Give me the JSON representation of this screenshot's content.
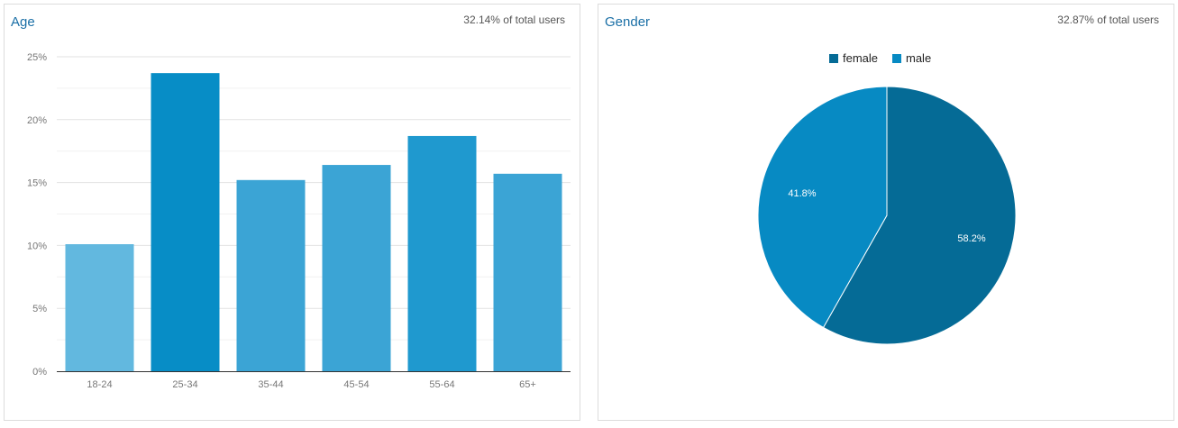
{
  "age_panel": {
    "title": "Age",
    "share": "32.14% of total users"
  },
  "gender_panel": {
    "title": "Gender",
    "share": "32.87% of total users"
  },
  "chart_data": [
    {
      "type": "bar",
      "title": "Age",
      "categories": [
        "18-24",
        "25-34",
        "35-44",
        "45-54",
        "55-64",
        "65+"
      ],
      "values": [
        10.1,
        23.7,
        15.2,
        16.4,
        18.7,
        15.7
      ],
      "colors": [
        "#62b8df",
        "#078dc6",
        "#3ba4d5",
        "#3ba4d5",
        "#1f99cf",
        "#3ba4d5"
      ],
      "ylim": [
        0,
        25
      ],
      "yticks": [
        "0%",
        "5%",
        "10%",
        "15%",
        "20%",
        "25%"
      ],
      "grid": true
    },
    {
      "type": "pie",
      "title": "Gender",
      "labels": [
        "female",
        "male"
      ],
      "values": [
        58.2,
        41.8
      ],
      "value_labels": [
        "58.2%",
        "41.8%"
      ],
      "colors": [
        "#056b96",
        "#078ac3"
      ],
      "legend": "top"
    }
  ]
}
